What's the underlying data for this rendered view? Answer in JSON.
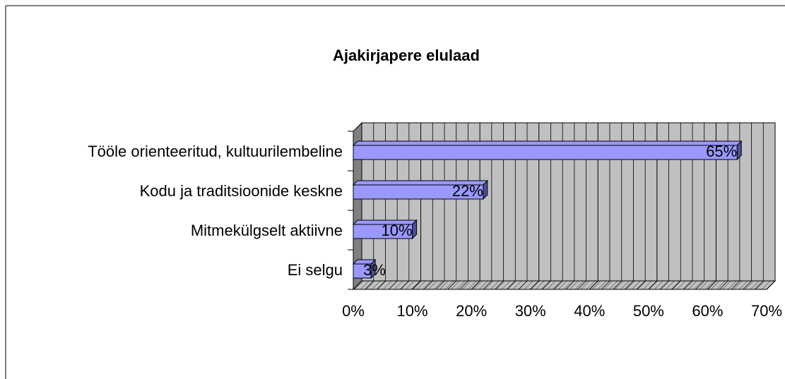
{
  "chart_data": {
    "type": "bar",
    "orientation": "horizontal",
    "title": "Ajakirjapere elulaad",
    "categories": [
      "Tööle orienteeritud, kultuurilembeline",
      "Kodu ja traditsioonide keskne",
      "Mitmekülgselt aktiivne",
      "Ei selgu"
    ],
    "values": [
      65,
      22,
      10,
      3
    ],
    "value_labels": [
      "65%",
      "22%",
      "10%",
      "3%"
    ],
    "color": "#9999ff",
    "xlim": [
      0,
      70
    ],
    "xticks": [
      {
        "value": 0,
        "label": "0%"
      },
      {
        "value": 10,
        "label": "10%"
      },
      {
        "value": 20,
        "label": "20%"
      },
      {
        "value": 30,
        "label": "30%"
      },
      {
        "value": 40,
        "label": "40%"
      },
      {
        "value": 50,
        "label": "50%"
      },
      {
        "value": 60,
        "label": "60%"
      },
      {
        "value": 70,
        "label": "70%"
      }
    ],
    "grid": true
  }
}
